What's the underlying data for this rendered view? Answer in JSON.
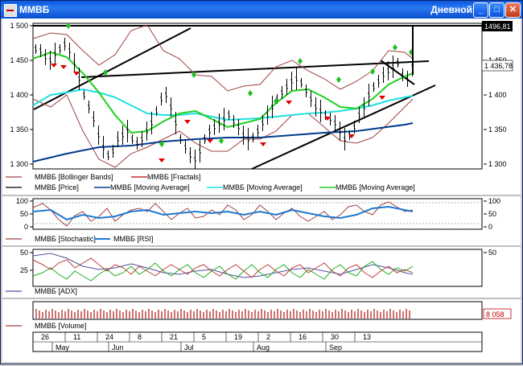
{
  "window": {
    "title": "ММВБ",
    "period": "Дневной",
    "minimize_glyph": "_",
    "maximize_glyph": "□",
    "close_glyph": "✕"
  },
  "price_panel": {
    "y_ticks": [
      "1 500",
      "1 450",
      "1 400",
      "1 350",
      "1 300"
    ],
    "right_ticks": [
      "1 450",
      "1 400",
      "1 350",
      "1 300"
    ],
    "last_price": "1496,81",
    "ref_price": "1 436,78",
    "legend": [
      {
        "label": "ММВБ [Bollinger Bands]",
        "color": "#a04040"
      },
      {
        "label": "ММВБ [Fractals]",
        "color": "#c00000"
      },
      {
        "label": "ММВБ [Price]",
        "color": "#000000"
      },
      {
        "label": "ММВБ [Moving Average]",
        "color": "#003a8c"
      },
      {
        "label": "ММВБ [Moving Average]",
        "color": "#20e0e0"
      },
      {
        "label": "ММВБ [Moving Average]",
        "color": "#20d020"
      }
    ]
  },
  "stoch_panel": {
    "left_ticks": [
      "100",
      "50",
      "0"
    ],
    "right_ticks": [
      "100",
      "50",
      "0"
    ],
    "legend": [
      {
        "label": "ММВБ [Stochastic]",
        "color": "#a04040"
      },
      {
        "label": "ММВБ [RSI]",
        "color": "#1e78d0"
      }
    ]
  },
  "adx_panel": {
    "left_ticks": [
      "50",
      "25"
    ],
    "right_ticks": [
      "50"
    ],
    "legend": [
      {
        "label": "ММВБ [ADX]",
        "color": "#5050a0"
      }
    ]
  },
  "volume_panel": {
    "last_volume": "8 058",
    "legend": [
      {
        "label": "ММВБ [Volume]",
        "color": "#a04040"
      }
    ]
  },
  "date_axis": {
    "days": [
      "26",
      "11",
      "24",
      "8",
      "21",
      "5",
      "19",
      "2",
      "16",
      "30",
      "13"
    ],
    "months": [
      "May",
      "Jun",
      "Jul",
      "Aug",
      "Sep"
    ]
  },
  "colors": {
    "bollinger": "#a04040",
    "fractal_up": "#20c020",
    "fractal_down": "#e00000",
    "ma_long": "#003a8c",
    "ma_mid": "#20e0e0",
    "ma_short": "#20d020"
  }
}
